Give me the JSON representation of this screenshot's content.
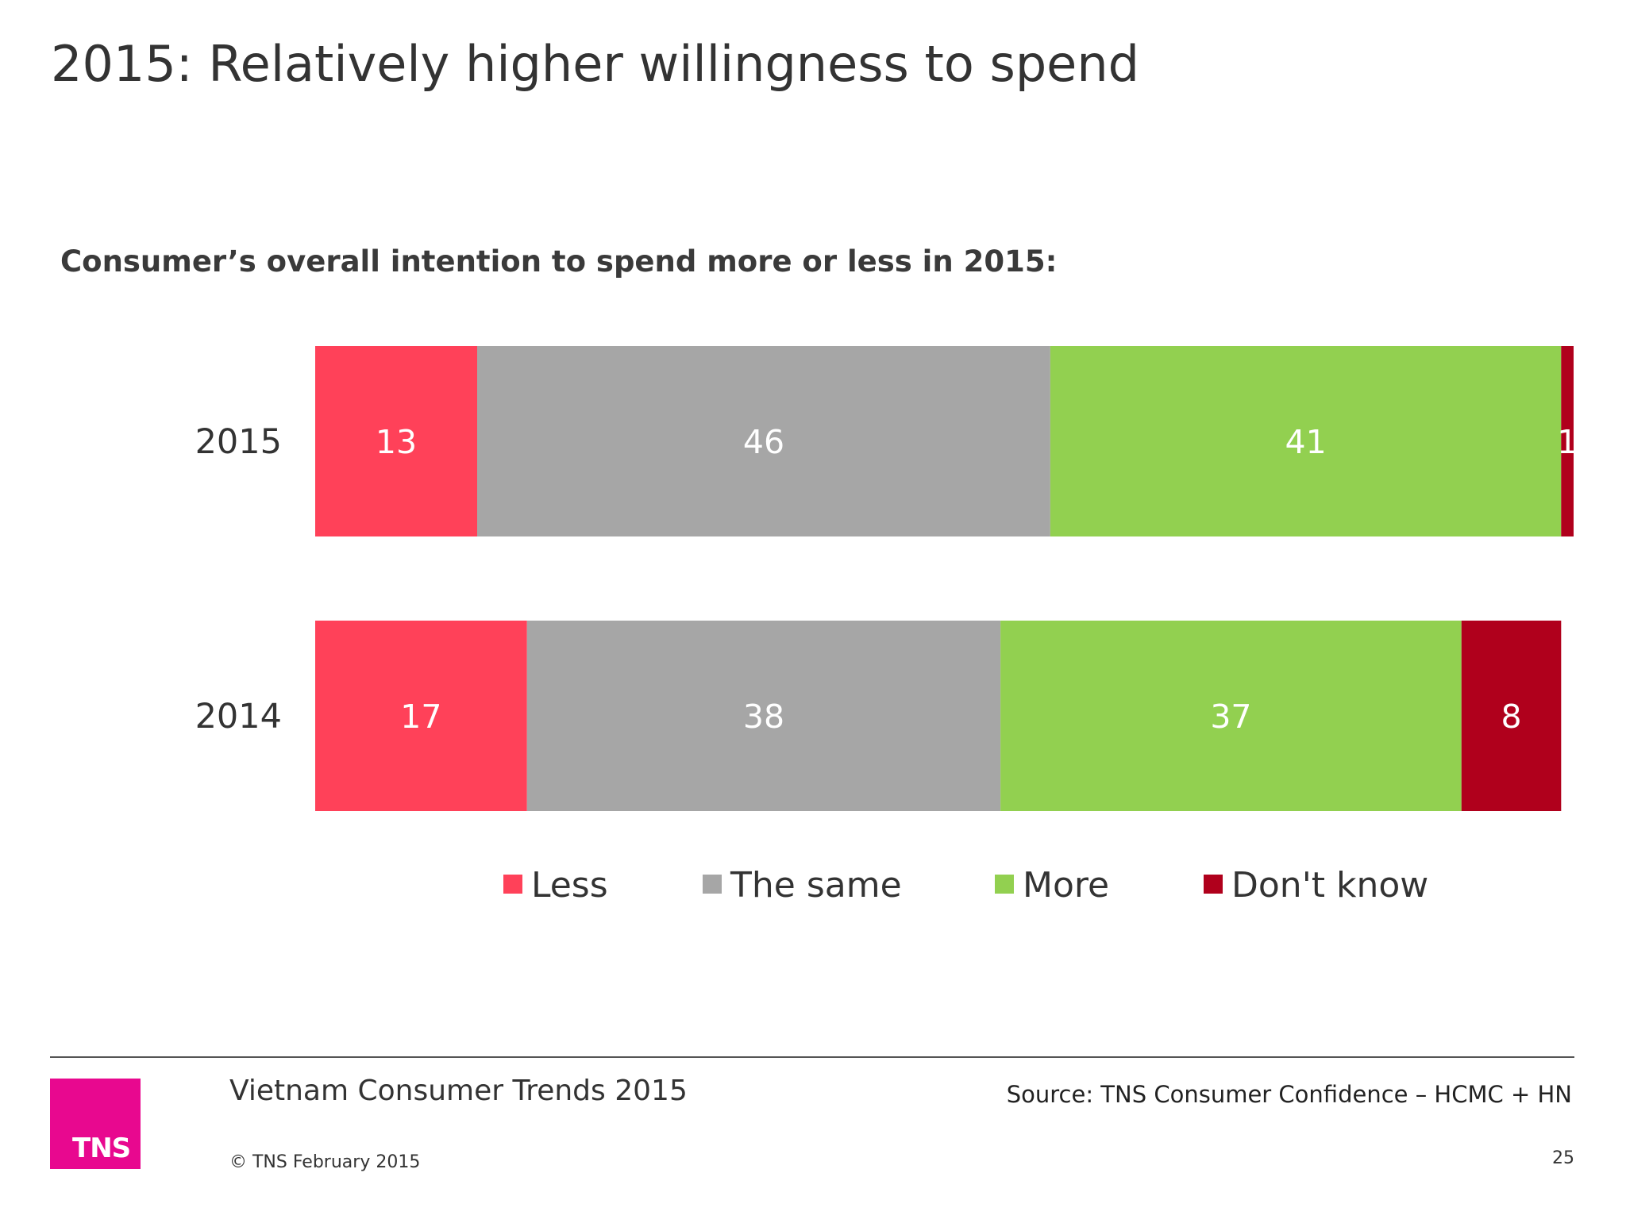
{
  "slide": {
    "title": "2015: Relatively higher willingness to spend",
    "logo_text": "TNS",
    "footer_title": "Vietnam Consumer Trends 2015",
    "source": "Source: TNS  Consumer Confidence – HCMC + HN",
    "copyright": "© TNS February 2015",
    "page_number": "25"
  },
  "colors": {
    "less": "#ff4159",
    "same": "#a6a6a6",
    "more": "#92d050",
    "dont_know": "#b0001c",
    "logo": "#e8088f"
  },
  "chart_data": {
    "type": "bar",
    "orientation": "horizontal",
    "stacked": true,
    "title": "Consumer’s overall intention to spend more or less in 2015:",
    "categories": [
      "2015",
      "2014"
    ],
    "series": [
      {
        "name": "Less",
        "values": [
          13,
          17
        ],
        "color": "#ff4159"
      },
      {
        "name": "The same",
        "values": [
          46,
          38
        ],
        "color": "#a6a6a6"
      },
      {
        "name": "More",
        "values": [
          41,
          37
        ],
        "color": "#92d050"
      },
      {
        "name": "Don't know",
        "values": [
          1,
          8
        ],
        "color": "#b0001c"
      }
    ],
    "xlim": [
      0,
      101
    ],
    "legend_position": "bottom",
    "grid": false
  }
}
